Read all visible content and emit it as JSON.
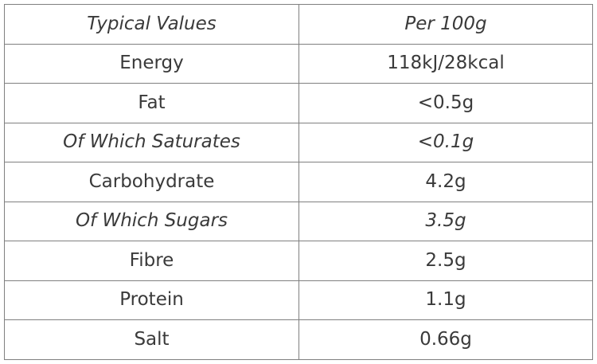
{
  "table": {
    "header": {
      "nutrient": "Typical Values",
      "value": "Per 100g"
    },
    "rows": [
      {
        "nutrient": "Energy",
        "value": "118kJ/28kcal",
        "italic": false
      },
      {
        "nutrient": "Fat",
        "value": "<0.5g",
        "italic": false
      },
      {
        "nutrient": "Of Which Saturates",
        "value": "<0.1g",
        "italic": true
      },
      {
        "nutrient": "Carbohydrate",
        "value": "4.2g",
        "italic": false
      },
      {
        "nutrient": "Of Which Sugars",
        "value": "3.5g",
        "italic": true
      },
      {
        "nutrient": "Fibre",
        "value": "2.5g",
        "italic": false
      },
      {
        "nutrient": "Protein",
        "value": "1.1g",
        "italic": false
      },
      {
        "nutrient": "Salt",
        "value": "0.66g",
        "italic": false
      }
    ]
  },
  "colors": {
    "border": "#808080",
    "text": "#3a3a3a",
    "background": "#ffffff"
  }
}
